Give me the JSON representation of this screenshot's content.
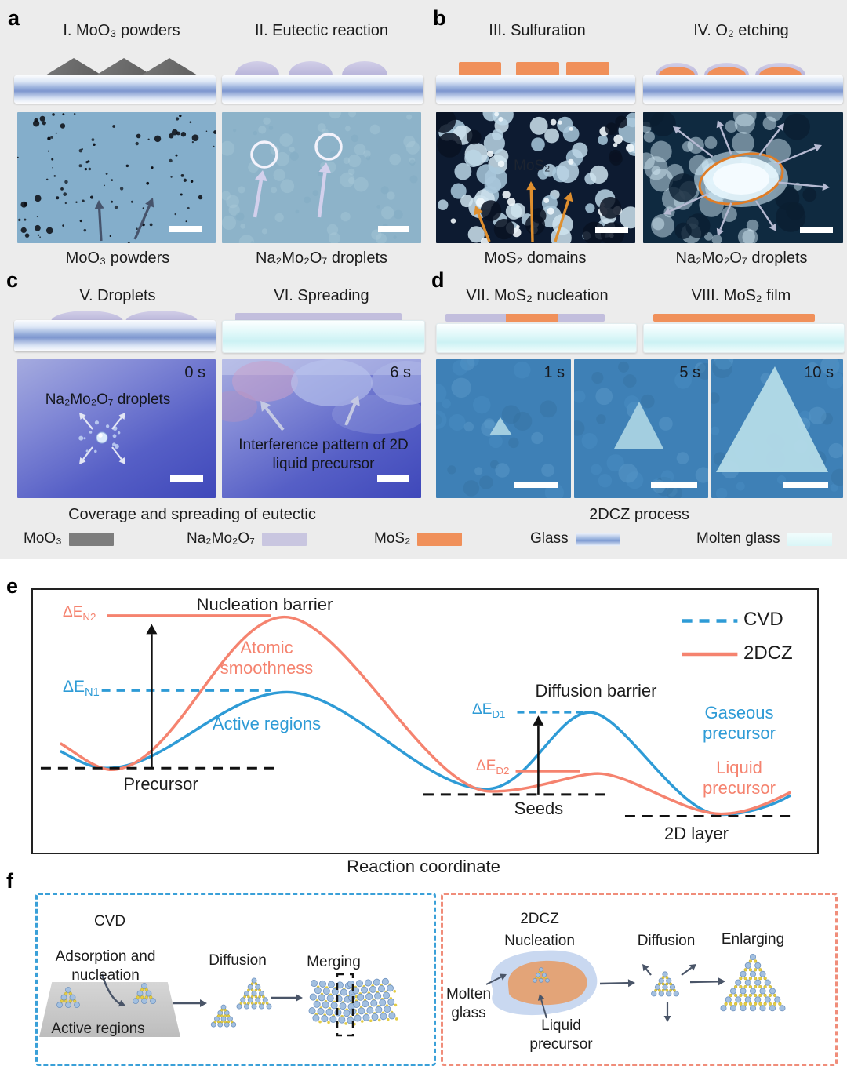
{
  "panels": {
    "a": {
      "label": "a",
      "steps": [
        {
          "title": "I. MoO₃ powders"
        },
        {
          "title": "II. Eutectic reaction"
        }
      ],
      "captions": [
        "MoO₃ powders",
        "Na₂Mo₂O₇ droplets"
      ]
    },
    "b": {
      "label": "b",
      "steps": [
        {
          "title": "III. Sulfuration"
        },
        {
          "title": "IV. O₂ etching"
        }
      ],
      "annotation": "MoS₂",
      "captions": [
        "MoS₂ domains",
        "Na₂Mo₂O₇ droplets"
      ]
    },
    "c": {
      "label": "c",
      "steps": [
        {
          "title": "V. Droplets"
        },
        {
          "title": "VI. Spreading"
        }
      ],
      "micrographs": [
        {
          "time": "0 s",
          "annotation": "Na₂Mo₂O₇ droplets"
        },
        {
          "time": "6 s",
          "annotation": "Interference pattern of 2D liquid precursor"
        }
      ],
      "caption": "Coverage and spreading of eutectic"
    },
    "d": {
      "label": "d",
      "steps": [
        {
          "title": "VII. MoS₂ nucleation"
        },
        {
          "title": "VIII. MoS₂ film"
        }
      ],
      "micrographs": [
        {
          "time": "1 s"
        },
        {
          "time": "5 s"
        },
        {
          "time": "10 s"
        }
      ],
      "caption": "2DCZ process"
    },
    "e": {
      "label": "e",
      "nucleation_barrier": "Nucleation barrier",
      "diffusion_barrier": "Diffusion barrier",
      "dE_N2": {
        "prefix": "ΔE",
        "sub": "N2"
      },
      "dE_N1": {
        "prefix": "ΔE",
        "sub": "N1"
      },
      "dE_D1": {
        "prefix": "ΔE",
        "sub": "D1"
      },
      "dE_D2": {
        "prefix": "ΔE",
        "sub": "D2"
      },
      "atomic_smoothness": "Atomic smoothness",
      "active_regions": "Active regions",
      "precursor": "Precursor",
      "seeds": "Seeds",
      "gaseous_precursor": "Gaseous precursor",
      "liquid_precursor": "Liquid precursor",
      "two_d_layer": "2D layer",
      "legend": {
        "cvd": "CVD",
        "dcz": "2DCZ"
      },
      "xlabel": "Reaction coordinate"
    },
    "f": {
      "label": "f",
      "cvd": {
        "title": "CVD",
        "adsorption": "Adsorption and nucleation",
        "active_regions": "Active regions",
        "diffusion": "Diffusion",
        "merging": "Merging"
      },
      "dcz": {
        "title": "2DCZ",
        "nucleation": "Nucleation",
        "molten_glass": "Molten glass",
        "liquid_precursor": "Liquid precursor",
        "diffusion": "Diffusion",
        "enlarging": "Enlarging"
      }
    }
  },
  "legend": {
    "items": [
      {
        "label": "MoO₃",
        "color": "#7d7d7d"
      },
      {
        "label": "Na₂Mo₂O₇",
        "color": "#c9c6e0"
      },
      {
        "label": "MoS₂",
        "color": "#f0905a"
      },
      {
        "label": "Glass",
        "color": "glass-gradient"
      },
      {
        "label": "Molten glass",
        "color": "#dff6f7"
      }
    ]
  },
  "colors": {
    "cvd_blue": "#2e9bd6",
    "dcz_salmon": "#f5836f",
    "mos2_orange": "#f0905a",
    "na2mo2o7_lavender": "#c9c6e0",
    "moo3_gray": "#7d7d7d",
    "active_regions_red": "#cf1f1f"
  }
}
